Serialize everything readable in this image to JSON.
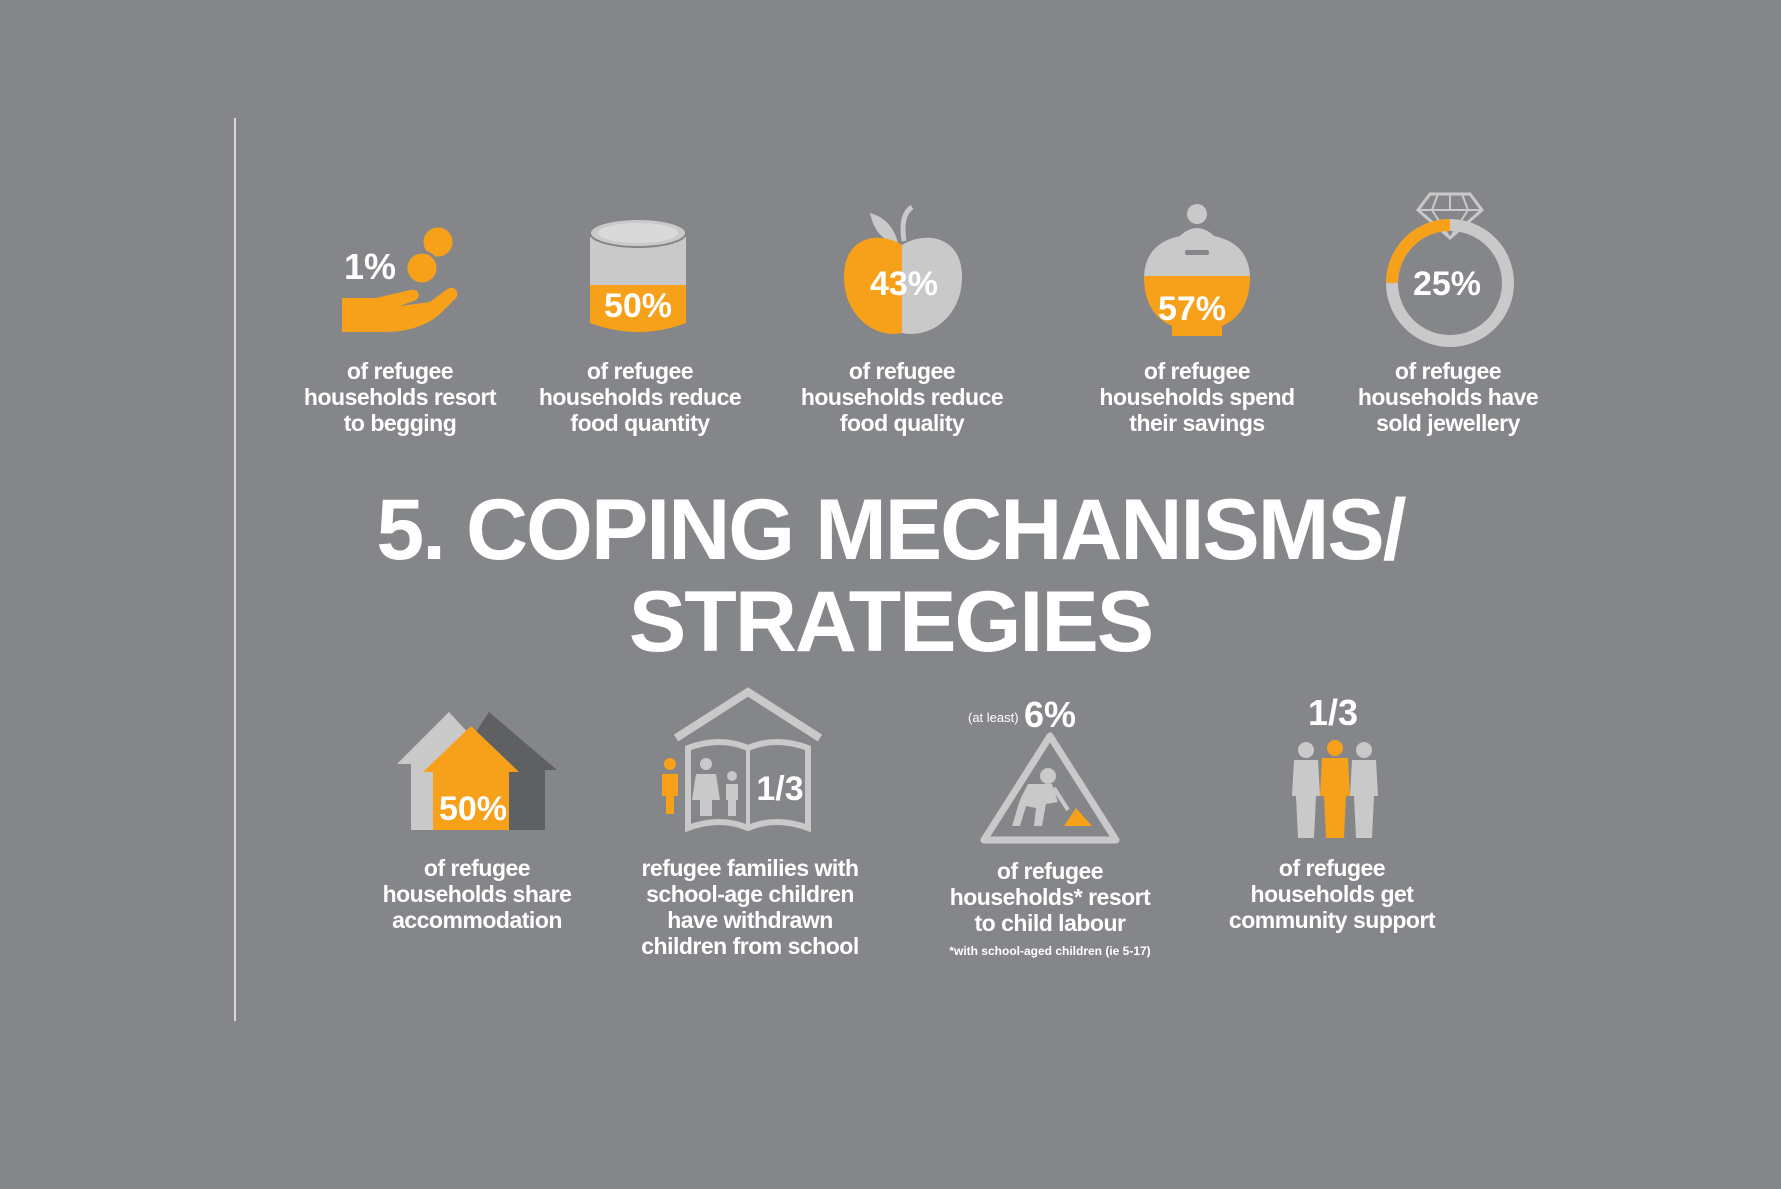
{
  "title": {
    "line1": "5. COPING MECHANISMS/",
    "line2": "STRATEGIES"
  },
  "colors": {
    "background": "#858689",
    "orange": "#f7a11a",
    "light_grey": "#c9c9ca",
    "dark_grey": "#5f6062"
  },
  "stats": [
    {
      "value": "1%",
      "lines": [
        "of refugee",
        "households resort",
        "to begging"
      ],
      "icon": "hand-coins-icon"
    },
    {
      "value": "50%",
      "lines": [
        "of refugee",
        "households reduce",
        "food quantity"
      ],
      "icon": "food-can-icon",
      "fill_fraction": 0.5
    },
    {
      "value": "43%",
      "lines": [
        "of refugee",
        "households reduce",
        "food quality"
      ],
      "icon": "apple-icon",
      "fill_fraction": 0.43
    },
    {
      "value": "57%",
      "lines": [
        "of refugee",
        "households spend",
        "their savings"
      ],
      "icon": "piggy-bank-pot-icon",
      "fill_fraction": 0.57
    },
    {
      "value": "25%",
      "lines": [
        "of refugee",
        "households have",
        "sold jewellery"
      ],
      "icon": "diamond-ring-icon",
      "fill_fraction": 0.25
    },
    {
      "value": "50%",
      "lines": [
        "of refugee",
        "households share",
        "accommodation"
      ],
      "icon": "shared-houses-icon",
      "fill_fraction": 0.5
    },
    {
      "value": "1/3",
      "lines": [
        "refugee families with",
        "school-age children",
        "have withdrawn",
        "children from school"
      ],
      "icon": "school-book-family-icon"
    },
    {
      "value": "6%",
      "prefix": "(at least)",
      "lines": [
        "of refugee",
        "households* resort",
        "to child labour"
      ],
      "note": "*with school-aged children (ie 5-17)",
      "icon": "child-labour-warning-icon"
    },
    {
      "value": "1/3",
      "lines": [
        "of refugee",
        "households get",
        "community support"
      ],
      "icon": "community-people-icon"
    }
  ]
}
